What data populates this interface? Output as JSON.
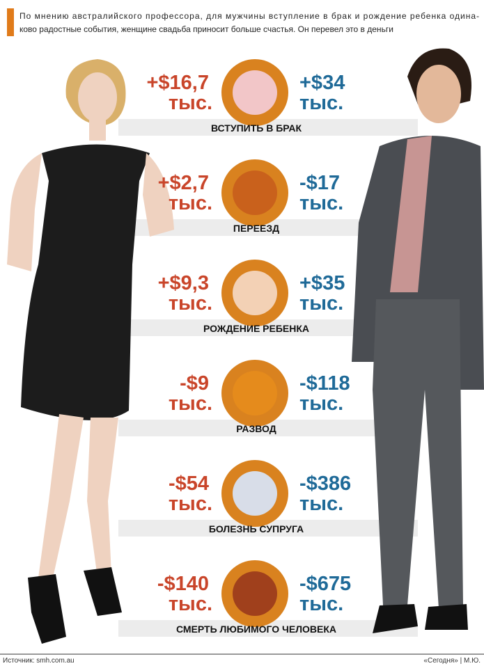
{
  "header": {
    "lines": [
      "По мнению австралийского профессора, для мужчины вступление в брак и рождение ребенка одина-",
      "ково радостные события, женщине свадьба приносит больше счастья. Он перевел это в деньги"
    ]
  },
  "events": [
    {
      "label": "ВСТУПИТЬ В БРАК",
      "woman": {
        "amount": "+$16,7",
        "unit": "тыс."
      },
      "man": {
        "amount": "+$34",
        "unit": "тыс."
      }
    },
    {
      "label": "ПЕРЕЕЗД",
      "woman": {
        "amount": "+$2,7",
        "unit": "тыс."
      },
      "man": {
        "amount": "-$17",
        "unit": "тыс."
      }
    },
    {
      "label": "РОЖДЕНИЕ РЕБЕНКА",
      "woman": {
        "amount": "+$9,3",
        "unit": "тыс."
      },
      "man": {
        "amount": "+$35",
        "unit": "тыс."
      }
    },
    {
      "label": "РАЗВОД",
      "woman": {
        "amount": "-$9",
        "unit": "тыс."
      },
      "man": {
        "amount": "-$118",
        "unit": "тыс."
      }
    },
    {
      "label": "БОЛЕЗНЬ СУПРУГА",
      "woman": {
        "amount": "-$54",
        "unit": "тыс."
      },
      "man": {
        "amount": "-$386",
        "unit": "тыс."
      }
    },
    {
      "label": "СМЕРТЬ ЛЮБИМОГО ЧЕЛОВЕКА",
      "woman": {
        "amount": "-$140",
        "unit": "тыс."
      },
      "man": {
        "amount": "-$675",
        "unit": "тыс."
      }
    }
  ],
  "footer": {
    "source": "Источник: smh.com.au",
    "credit": "«Сегодня» | М.Ю."
  }
}
